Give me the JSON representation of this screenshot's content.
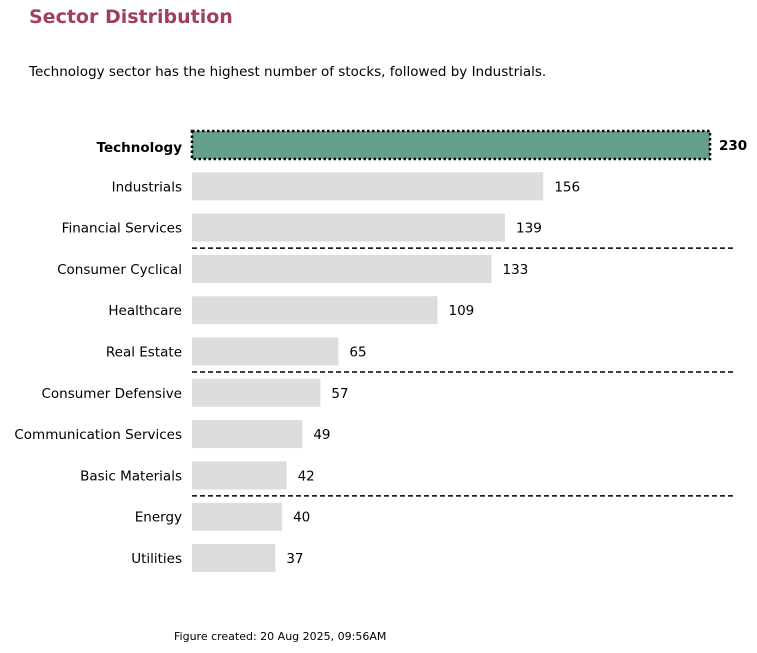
{
  "chart_data": {
    "type": "bar",
    "orientation": "horizontal",
    "title": "Sector Distribution",
    "subtitle": "Technology sector has the highest number of stocks, followed by Industrials.",
    "footnote": "Figure created: 20 Aug 2025, 09:56AM",
    "categories": [
      "Technology",
      "Industrials",
      "Financial Services",
      "Consumer Cyclical",
      "Healthcare",
      "Real Estate",
      "Consumer Defensive",
      "Communication Services",
      "Basic Materials",
      "Energy",
      "Utilities"
    ],
    "values": [
      230,
      156,
      139,
      133,
      109,
      65,
      57,
      49,
      42,
      40,
      37
    ],
    "highlight": "Technology",
    "group_separators_after": [
      "Financial Services",
      "Real Estate",
      "Basic Materials"
    ],
    "xlim": [
      0,
      230
    ],
    "grid": false,
    "colors": {
      "highlight": "#659f8e",
      "default": "#dddddd",
      "title": "#9e3f63"
    }
  }
}
